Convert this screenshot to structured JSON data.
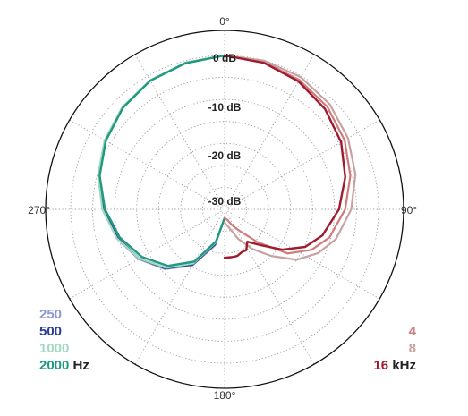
{
  "chart_data": {
    "type": "polar-line",
    "title": "",
    "angle_labels": {
      "top": "0°",
      "right": "90°",
      "bottom": "180°",
      "left": "270°"
    },
    "radial_labels": [
      "0 dB",
      "-10 dB",
      "-20 dB",
      "-30 dB"
    ],
    "rlim_db": [
      -35,
      0
    ],
    "ring_step_db": 5,
    "spoke_step_deg": 30,
    "grid": true,
    "legend_left": {
      "unit": "Hz",
      "items": [
        {
          "label": "250",
          "color": "#8e98d2"
        },
        {
          "label": "500",
          "color": "#2b3d93"
        },
        {
          "label": "1000",
          "color": "#a2d8c0"
        },
        {
          "label": "2000",
          "color": "#1f9a7e"
        }
      ]
    },
    "legend_right": {
      "unit": "kHz",
      "items": [
        {
          "label": "4",
          "color": "#d07a7c"
        },
        {
          "label": "8",
          "color": "#c9a1a2"
        },
        {
          "label": "16",
          "color": "#9f1b2f"
        }
      ]
    },
    "series": [
      {
        "name": "250",
        "color": "#8e98d2",
        "width": 2.2,
        "angles": [
          0,
          15,
          30,
          45,
          60,
          75,
          90,
          105,
          120,
          135,
          150,
          165,
          180
        ],
        "values": [
          0,
          -0.5,
          -1.2,
          -2.2,
          -3.6,
          -5.3,
          -7.3,
          -9.6,
          -12.4,
          -15.8,
          -20.2,
          -26.5,
          -33
        ]
      },
      {
        "name": "500",
        "color": "#2b3d93",
        "width": 2.2,
        "angles": [
          0,
          15,
          30,
          45,
          60,
          75,
          90,
          105,
          120,
          135,
          150,
          165,
          180
        ],
        "values": [
          0,
          -0.5,
          -1.2,
          -2.2,
          -3.6,
          -5.4,
          -7.4,
          -9.8,
          -12.6,
          -16,
          -20.5,
          -26.8,
          -33
        ]
      },
      {
        "name": "1000",
        "color": "#a2d8c0",
        "width": 2.2,
        "angles": [
          0,
          15,
          30,
          45,
          60,
          75,
          90,
          105,
          120,
          135,
          150,
          165,
          180
        ],
        "values": [
          0,
          -0.5,
          -1.1,
          -2.1,
          -3.5,
          -5.2,
          -7.2,
          -9.6,
          -12.6,
          -16.2,
          -20.8,
          -27.2,
          -33
        ]
      },
      {
        "name": "2000",
        "color": "#1f9a7e",
        "width": 2.4,
        "angles": [
          0,
          15,
          30,
          45,
          60,
          75,
          90,
          105,
          120,
          135,
          150,
          165,
          180
        ],
        "values": [
          0,
          -0.6,
          -1.2,
          -2.3,
          -3.8,
          -5.6,
          -7.8,
          -10.3,
          -13.3,
          -16.8,
          -21.3,
          -27.5,
          -33
        ]
      },
      {
        "name": "4",
        "color": "#d07a7c",
        "width": 2.2,
        "angles": [
          0,
          15,
          30,
          45,
          60,
          75,
          90,
          105,
          115,
          125,
          135,
          145,
          155,
          165,
          180
        ],
        "values": [
          0,
          -0.3,
          -1,
          -2,
          -3.5,
          -5.4,
          -7.6,
          -10.3,
          -13.2,
          -17.5,
          -24.5,
          -29,
          -31,
          -32.5,
          -33
        ]
      },
      {
        "name": "8",
        "color": "#c9a1a2",
        "width": 2.2,
        "angles": [
          0,
          15,
          30,
          45,
          60,
          75,
          90,
          105,
          115,
          125,
          135,
          145,
          155,
          165,
          180
        ],
        "values": [
          0,
          0,
          -0.3,
          -1.2,
          -2.6,
          -4.2,
          -6.2,
          -8.8,
          -11.5,
          -15,
          -20,
          -24,
          -27.5,
          -30.5,
          -32
        ]
      },
      {
        "name": "16",
        "color": "#9f1b2f",
        "width": 2.4,
        "angles": [
          0,
          15,
          30,
          45,
          60,
          75,
          90,
          105,
          115,
          125,
          135,
          145,
          152,
          158,
          165,
          172,
          180
        ],
        "values": [
          0,
          -0.5,
          -1.4,
          -2.7,
          -4.4,
          -6.6,
          -9,
          -12,
          -14.8,
          -19,
          -23.5,
          -26,
          -24.5,
          -24.5,
          -24,
          -24,
          -24
        ]
      }
    ]
  }
}
